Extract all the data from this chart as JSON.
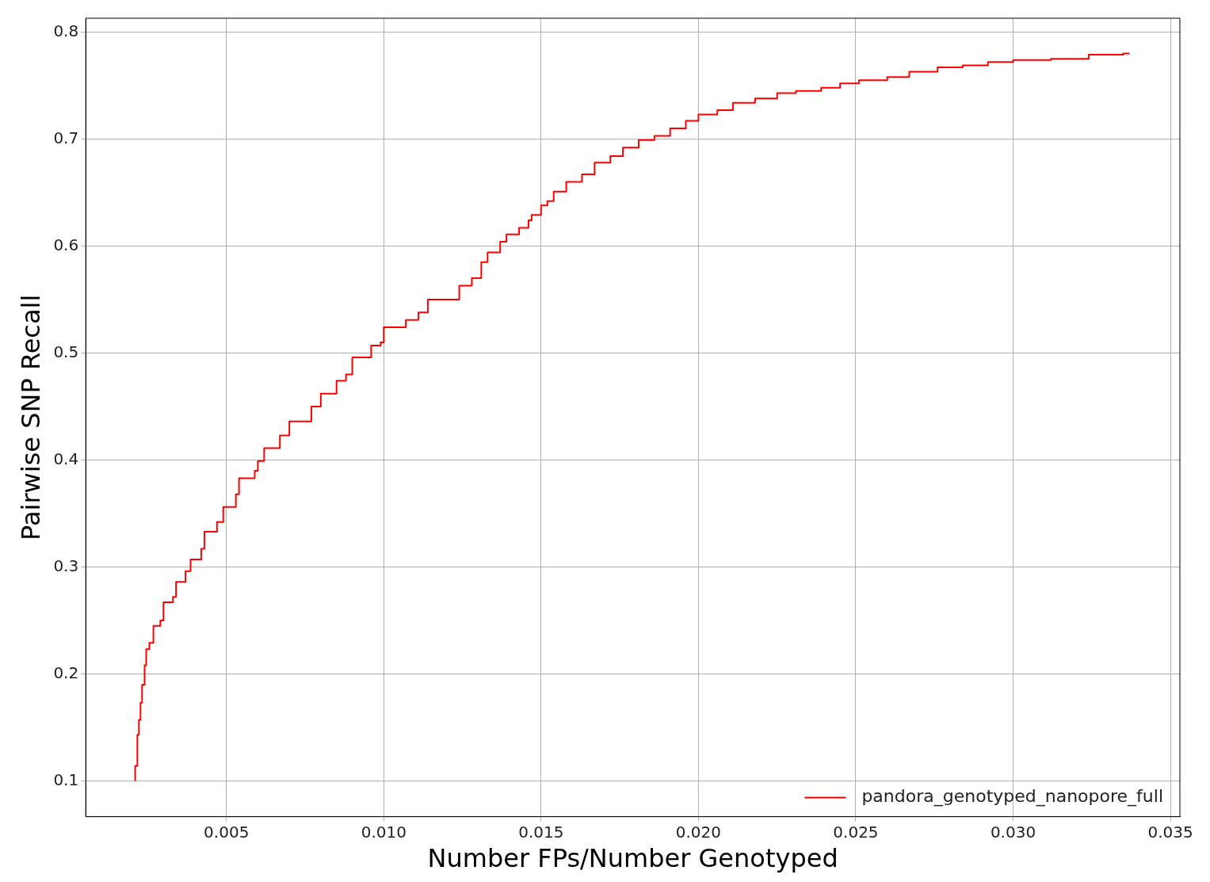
{
  "chart_data": {
    "type": "step",
    "xlabel": "Number FPs/Number Genotyped",
    "ylabel": "Pairwise SNP Recall",
    "xlim": [
      0.00053,
      0.0353
    ],
    "ylim": [
      0.0665,
      0.813
    ],
    "xticks": [
      {
        "value": 0.005,
        "label": "0.005"
      },
      {
        "value": 0.01,
        "label": "0.010"
      },
      {
        "value": 0.015,
        "label": "0.015"
      },
      {
        "value": 0.02,
        "label": "0.020"
      },
      {
        "value": 0.025,
        "label": "0.025"
      },
      {
        "value": 0.03,
        "label": "0.030"
      },
      {
        "value": 0.035,
        "label": "0.035"
      }
    ],
    "yticks": [
      0.1,
      0.2,
      0.3,
      0.4,
      0.5,
      0.6,
      0.7,
      0.8
    ],
    "grid": true,
    "legend": "bottom right",
    "series": [
      {
        "name": "pandora_genotyped_nanopore_full",
        "color": "#ff0000",
        "x": [
          0.0021,
          0.00217,
          0.00222,
          0.00227,
          0.00232,
          0.0024,
          0.00245,
          0.00255,
          0.00268,
          0.0029,
          0.003,
          0.0033,
          0.0034,
          0.0037,
          0.00386,
          0.0042,
          0.0043,
          0.0047,
          0.0049,
          0.0053,
          0.0054,
          0.0059,
          0.006,
          0.0062,
          0.0067,
          0.007,
          0.0077,
          0.008,
          0.0085,
          0.0088,
          0.009,
          0.0096,
          0.0099,
          0.01,
          0.0107,
          0.0111,
          0.0114,
          0.0124,
          0.0128,
          0.0131,
          0.0133,
          0.0137,
          0.0139,
          0.0143,
          0.0146,
          0.0147,
          0.015,
          0.0152,
          0.0154,
          0.0158,
          0.0163,
          0.0167,
          0.0172,
          0.0176,
          0.0181,
          0.0186,
          0.0191,
          0.0196,
          0.02,
          0.0206,
          0.0211,
          0.0218,
          0.0225,
          0.0231,
          0.0239,
          0.0245,
          0.0251,
          0.026,
          0.0267,
          0.0276,
          0.0284,
          0.0292,
          0.03,
          0.0312,
          0.0324,
          0.0335,
          0.0337
        ],
        "values": [
          0.1,
          0.114,
          0.143,
          0.157,
          0.173,
          0.19,
          0.208,
          0.223,
          0.229,
          0.245,
          0.25,
          0.267,
          0.272,
          0.286,
          0.296,
          0.307,
          0.317,
          0.333,
          0.342,
          0.356,
          0.368,
          0.383,
          0.39,
          0.399,
          0.411,
          0.423,
          0.436,
          0.45,
          0.462,
          0.474,
          0.48,
          0.496,
          0.507,
          0.51,
          0.524,
          0.531,
          0.538,
          0.55,
          0.563,
          0.57,
          0.585,
          0.594,
          0.604,
          0.611,
          0.617,
          0.624,
          0.629,
          0.638,
          0.642,
          0.651,
          0.66,
          0.667,
          0.678,
          0.684,
          0.692,
          0.699,
          0.703,
          0.71,
          0.717,
          0.723,
          0.727,
          0.734,
          0.738,
          0.743,
          0.745,
          0.748,
          0.752,
          0.755,
          0.758,
          0.763,
          0.767,
          0.769,
          0.772,
          0.774,
          0.775,
          0.779,
          0.78
        ]
      }
    ]
  }
}
